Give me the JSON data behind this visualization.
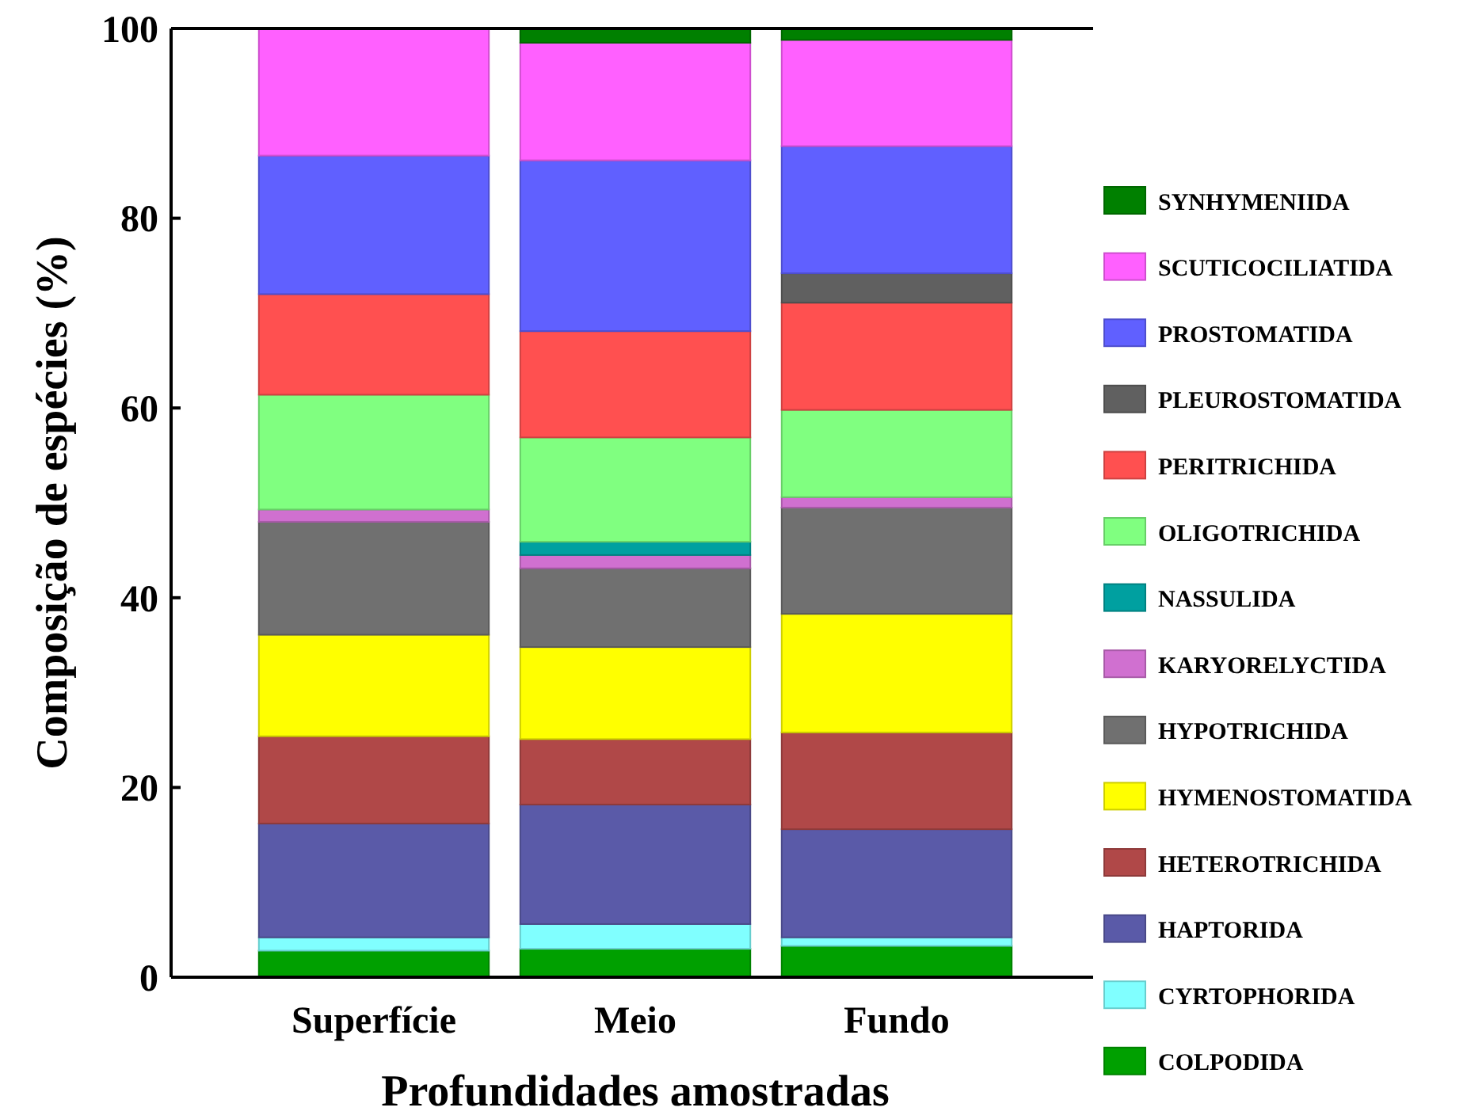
{
  "chart_data": {
    "type": "bar",
    "stacked": true,
    "xlabel": "Profundidades amostradas",
    "ylabel": "Composição de espécies (%)",
    "categories": [
      "Superfície",
      "Meio",
      "Fundo"
    ],
    "series": [
      {
        "name": "COLPODIDA",
        "color": "#00a000",
        "values": [
          2.8,
          3.0,
          3.3
        ]
      },
      {
        "name": "CYRTOPHORIDA",
        "color": "#80ffff",
        "values": [
          1.4,
          2.6,
          0.9
        ]
      },
      {
        "name": "HAPTORIDA",
        "color": "#5a5aa8",
        "values": [
          12.0,
          12.6,
          11.4
        ]
      },
      {
        "name": "HETEROTRICHIDA",
        "color": "#b04848",
        "values": [
          9.2,
          6.9,
          10.2
        ]
      },
      {
        "name": "HYMENOSTOMATIDA",
        "color": "#ffff00",
        "values": [
          10.7,
          9.7,
          12.5
        ]
      },
      {
        "name": "HYPOTRICHIDA",
        "color": "#707070",
        "values": [
          11.9,
          8.3,
          11.2
        ]
      },
      {
        "name": "KARYORELYCTIDA",
        "color": "#d070d0",
        "values": [
          1.3,
          1.4,
          1.1
        ]
      },
      {
        "name": "NASSULIDA",
        "color": "#00a0a0",
        "values": [
          0,
          1.4,
          0
        ]
      },
      {
        "name": "OLIGOTRICHIDA",
        "color": "#80ff80",
        "values": [
          12.1,
          11.0,
          9.2
        ]
      },
      {
        "name": "PERITRICHIDA",
        "color": "#ff5050",
        "values": [
          10.6,
          11.2,
          11.3
        ]
      },
      {
        "name": "PLEUROSTOMATIDA",
        "color": "#606060",
        "values": [
          0,
          0,
          3.1
        ]
      },
      {
        "name": "PROSTOMATIDA",
        "color": "#6060ff",
        "values": [
          14.6,
          18.0,
          13.4
        ]
      },
      {
        "name": "SCUTICOCILIATIDA",
        "color": "#ff60ff",
        "values": [
          13.4,
          12.4,
          11.2
        ]
      },
      {
        "name": "SYNHYMENIIDA",
        "color": "#008000",
        "values": [
          0,
          1.5,
          1.2
        ]
      }
    ],
    "ylim": [
      0,
      100
    ],
    "yticks": [
      0,
      20,
      40,
      60,
      80,
      100
    ],
    "legend": "right"
  }
}
